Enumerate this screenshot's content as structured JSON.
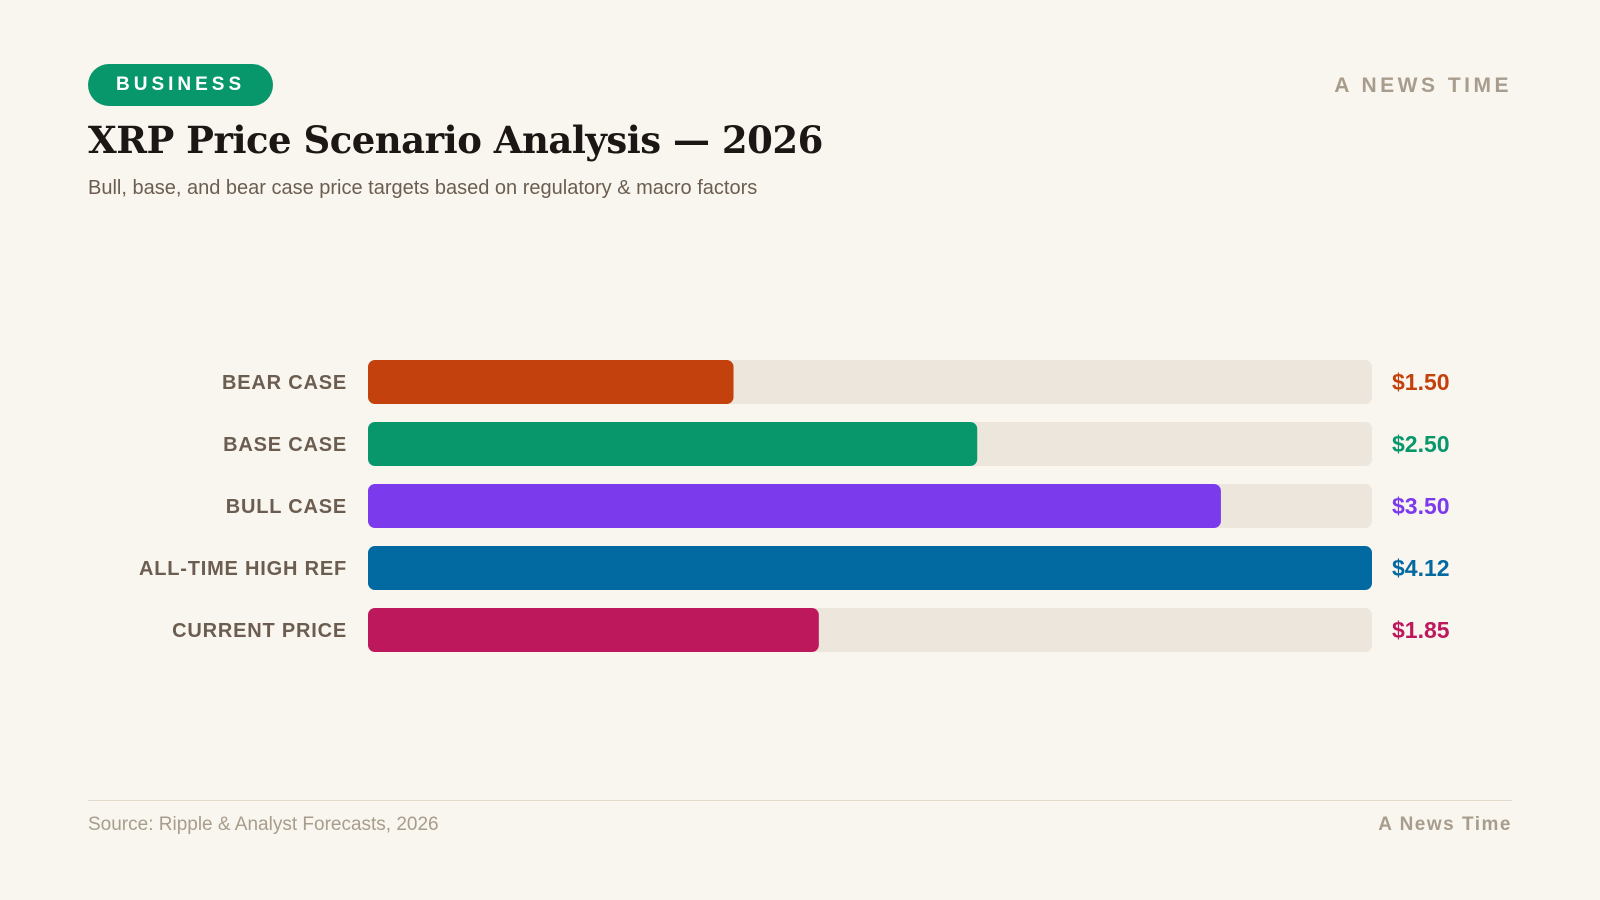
{
  "header": {
    "badge": "BUSINESS",
    "brand": "A NEWS TIME",
    "title": "XRP Price Scenario Analysis — 2026",
    "subtitle": "Bull, base, and bear case price targets based on regulatory & macro factors"
  },
  "footer": {
    "source": "Source: Ripple & Analyst Forecasts, 2026",
    "brand": "A News Time"
  },
  "colors": {
    "background": "#f9f5ef",
    "badge": "#07976a",
    "track": "#ede6dc",
    "label": "#6b5e51",
    "muted": "#a89d8c"
  },
  "chart_data": {
    "type": "bar",
    "orientation": "horizontal",
    "title": "XRP Price Scenario Analysis — 2026",
    "subtitle": "Bull, base, and bear case price targets based on regulatory & macro factors",
    "xlabel": "",
    "ylabel": "",
    "xlim": [
      0,
      4.12
    ],
    "grid": false,
    "legend": "none",
    "categories": [
      "BEAR CASE",
      "BASE CASE",
      "BULL CASE",
      "ALL-TIME HIGH REF",
      "CURRENT PRICE"
    ],
    "values": [
      1.5,
      2.5,
      3.5,
      4.12,
      1.85
    ],
    "value_labels": [
      "$1.50",
      "$2.50",
      "$3.50",
      "$4.12",
      "$1.85"
    ],
    "colors": [
      "#c2410c",
      "#07976a",
      "#7c3aed",
      "#0369a1",
      "#be185d"
    ]
  }
}
